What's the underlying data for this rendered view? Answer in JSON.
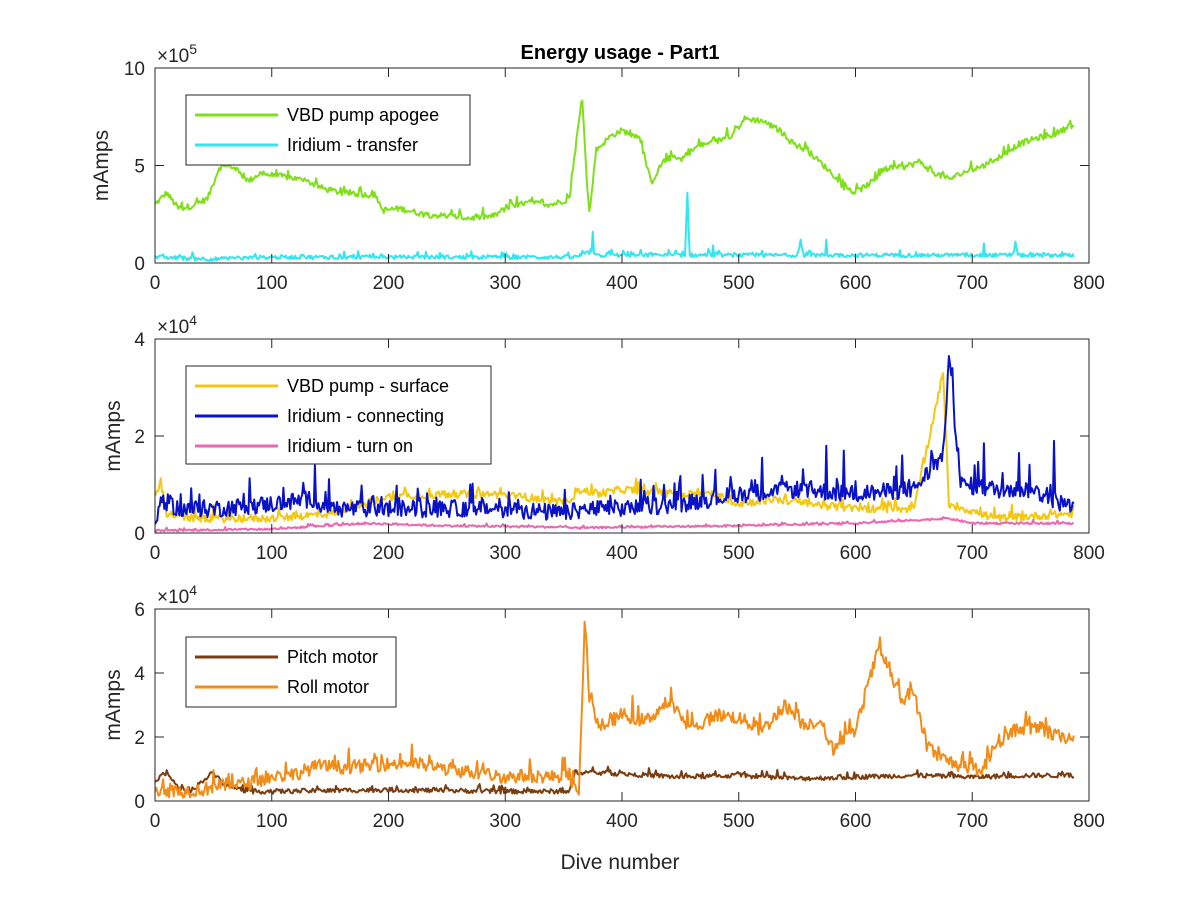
{
  "chart_data": [
    {
      "type": "line",
      "title": "Energy usage - Part1",
      "xlabel": "",
      "ylabel": "mAmps",
      "y_exponent_label": "×10",
      "y_exponent": "5",
      "xlim": [
        0,
        800
      ],
      "ylim": [
        0,
        10
      ],
      "xticks": [
        0,
        100,
        200,
        300,
        400,
        500,
        600,
        700,
        800
      ],
      "yticks": [
        0,
        5,
        10
      ],
      "legend_position": "top-left",
      "grid": false,
      "series": [
        {
          "name": "VBD pump apogee",
          "color": "#7fe01a",
          "noise": 0.15,
          "points": [
            [
              0,
              3.0
            ],
            [
              10,
              3.6
            ],
            [
              20,
              2.8
            ],
            [
              30,
              2.9
            ],
            [
              45,
              3.3
            ],
            [
              55,
              4.9
            ],
            [
              65,
              5.0
            ],
            [
              80,
              4.2
            ],
            [
              90,
              4.6
            ],
            [
              100,
              4.5
            ],
            [
              115,
              4.4
            ],
            [
              130,
              4.2
            ],
            [
              145,
              3.8
            ],
            [
              160,
              3.6
            ],
            [
              180,
              3.5
            ],
            [
              188,
              3.5
            ],
            [
              195,
              2.7
            ],
            [
              210,
              2.8
            ],
            [
              230,
              2.5
            ],
            [
              250,
              2.4
            ],
            [
              270,
              2.3
            ],
            [
              290,
              2.4
            ],
            [
              300,
              2.8
            ],
            [
              320,
              3.1
            ],
            [
              340,
              3.0
            ],
            [
              355,
              3.3
            ],
            [
              362,
              6.8
            ],
            [
              366,
              8.4
            ],
            [
              370,
              4.0
            ],
            [
              372,
              2.6
            ],
            [
              378,
              5.8
            ],
            [
              390,
              6.5
            ],
            [
              400,
              6.8
            ],
            [
              415,
              6.4
            ],
            [
              425,
              4.1
            ],
            [
              435,
              5.2
            ],
            [
              445,
              5.5
            ],
            [
              450,
              5.3
            ],
            [
              465,
              6.0
            ],
            [
              480,
              6.2
            ],
            [
              495,
              6.6
            ],
            [
              505,
              7.4
            ],
            [
              520,
              7.3
            ],
            [
              535,
              6.8
            ],
            [
              545,
              6.2
            ],
            [
              560,
              5.7
            ],
            [
              580,
              4.6
            ],
            [
              590,
              3.9
            ],
            [
              600,
              3.6
            ],
            [
              615,
              4.2
            ],
            [
              625,
              4.8
            ],
            [
              640,
              4.9
            ],
            [
              655,
              5.2
            ],
            [
              665,
              4.7
            ],
            [
              680,
              4.3
            ],
            [
              695,
              4.7
            ],
            [
              710,
              5.0
            ],
            [
              725,
              5.5
            ],
            [
              740,
              6.1
            ],
            [
              755,
              6.4
            ],
            [
              770,
              6.6
            ],
            [
              787,
              7.1
            ]
          ]
        },
        {
          "name": "Iridium - transfer",
          "color": "#31e6ef",
          "noise": 0.1,
          "points": [
            [
              0,
              0.3
            ],
            [
              50,
              0.2
            ],
            [
              100,
              0.3
            ],
            [
              150,
              0.3
            ],
            [
              200,
              0.3
            ],
            [
              250,
              0.3
            ],
            [
              300,
              0.3
            ],
            [
              350,
              0.3
            ],
            [
              360,
              0.3
            ],
            [
              375,
              0.6
            ],
            [
              380,
              0.4
            ],
            [
              400,
              0.4
            ],
            [
              454,
              0.4
            ],
            [
              456,
              3.6
            ],
            [
              458,
              0.4
            ],
            [
              500,
              0.4
            ],
            [
              551,
              0.4
            ],
            [
              553,
              1.2
            ],
            [
              555,
              0.4
            ],
            [
              600,
              0.4
            ],
            [
              650,
              0.4
            ],
            [
              700,
              0.4
            ],
            [
              735,
              0.4
            ],
            [
              737,
              1.1
            ],
            [
              739,
              0.4
            ],
            [
              787,
              0.4
            ]
          ],
          "spikes": [
            [
              375,
              1.6
            ],
            [
              456,
              3.6
            ],
            [
              478,
              0.9
            ],
            [
              553,
              1.2
            ],
            [
              575,
              1.2
            ],
            [
              710,
              1.0
            ],
            [
              737,
              1.1
            ]
          ]
        }
      ]
    },
    {
      "type": "line",
      "title": "",
      "xlabel": "",
      "ylabel": "mAmps",
      "y_exponent_label": "×10",
      "y_exponent": "4",
      "xlim": [
        0,
        800
      ],
      "ylim": [
        0,
        4
      ],
      "xticks": [
        0,
        100,
        200,
        300,
        400,
        500,
        600,
        700,
        800
      ],
      "yticks": [
        0,
        2,
        4
      ],
      "legend_position": "top-left",
      "grid": false,
      "series": [
        {
          "name": "VBD pump - surface",
          "color": "#f5c710",
          "noise": 0.2,
          "points": [
            [
              0,
              0.8
            ],
            [
              5,
              1.05
            ],
            [
              10,
              0.4
            ],
            [
              30,
              0.3
            ],
            [
              60,
              0.3
            ],
            [
              100,
              0.3
            ],
            [
              150,
              0.4
            ],
            [
              180,
              0.6
            ],
            [
              200,
              0.75
            ],
            [
              250,
              0.8
            ],
            [
              290,
              0.8
            ],
            [
              330,
              0.7
            ],
            [
              350,
              0.6
            ],
            [
              365,
              0.9
            ],
            [
              380,
              0.8
            ],
            [
              400,
              0.9
            ],
            [
              450,
              0.8
            ],
            [
              480,
              0.8
            ],
            [
              500,
              0.6
            ],
            [
              530,
              0.7
            ],
            [
              560,
              0.6
            ],
            [
              600,
              0.5
            ],
            [
              650,
              0.5
            ],
            [
              675,
              3.3
            ],
            [
              680,
              0.6
            ],
            [
              720,
              0.3
            ],
            [
              787,
              0.4
            ]
          ]
        },
        {
          "name": "Iridium - connecting",
          "color": "#0a12c8",
          "noise": 0.45,
          "points": [
            [
              0,
              0.1
            ],
            [
              5,
              0.7
            ],
            [
              20,
              0.5
            ],
            [
              50,
              0.5
            ],
            [
              100,
              0.6
            ],
            [
              135,
              0.7
            ],
            [
              150,
              0.5
            ],
            [
              200,
              0.5
            ],
            [
              250,
              0.5
            ],
            [
              300,
              0.5
            ],
            [
              350,
              0.4
            ],
            [
              370,
              0.5
            ],
            [
              400,
              0.5
            ],
            [
              450,
              0.6
            ],
            [
              500,
              0.8
            ],
            [
              550,
              0.9
            ],
            [
              600,
              0.8
            ],
            [
              650,
              0.9
            ],
            [
              675,
              1.6
            ],
            [
              680,
              3.6
            ],
            [
              690,
              1.0
            ],
            [
              720,
              0.9
            ],
            [
              750,
              0.9
            ],
            [
              787,
              0.5
            ]
          ],
          "spikes": [
            [
              137,
              1.4
            ],
            [
              270,
              1.0
            ],
            [
              520,
              1.55
            ],
            [
              575,
              1.8
            ],
            [
              590,
              1.7
            ],
            [
              640,
              1.6
            ],
            [
              680,
              3.65
            ],
            [
              683,
              3.4
            ],
            [
              710,
              1.85
            ],
            [
              740,
              1.65
            ],
            [
              770,
              1.9
            ]
          ]
        },
        {
          "name": "Iridium - turn on",
          "color": "#ec66b0",
          "noise": 0.05,
          "points": [
            [
              0,
              0.05
            ],
            [
              100,
              0.08
            ],
            [
              180,
              0.2
            ],
            [
              250,
              0.15
            ],
            [
              350,
              0.12
            ],
            [
              360,
              0.1
            ],
            [
              400,
              0.12
            ],
            [
              500,
              0.15
            ],
            [
              600,
              0.2
            ],
            [
              680,
              0.3
            ],
            [
              700,
              0.2
            ],
            [
              787,
              0.2
            ]
          ]
        }
      ]
    },
    {
      "type": "line",
      "title": "",
      "xlabel": "Dive number",
      "ylabel": "mAmps",
      "y_exponent_label": "×10",
      "y_exponent": "4",
      "xlim": [
        0,
        800
      ],
      "ylim": [
        0,
        6
      ],
      "xticks": [
        0,
        100,
        200,
        300,
        400,
        500,
        600,
        700,
        800
      ],
      "yticks": [
        0,
        2,
        4,
        6
      ],
      "legend_position": "top-left",
      "grid": false,
      "series": [
        {
          "name": "Pitch motor",
          "color": "#7b3d0f",
          "noise": 0.12,
          "points": [
            [
              0,
              0.6
            ],
            [
              10,
              0.9
            ],
            [
              20,
              0.4
            ],
            [
              30,
              0.3
            ],
            [
              50,
              0.9
            ],
            [
              60,
              0.5
            ],
            [
              80,
              0.3
            ],
            [
              100,
              0.3
            ],
            [
              200,
              0.35
            ],
            [
              300,
              0.3
            ],
            [
              355,
              0.3
            ],
            [
              360,
              0.9
            ],
            [
              400,
              0.85
            ],
            [
              450,
              0.75
            ],
            [
              500,
              0.8
            ],
            [
              550,
              0.7
            ],
            [
              600,
              0.75
            ],
            [
              650,
              0.8
            ],
            [
              700,
              0.75
            ],
            [
              750,
              0.8
            ],
            [
              787,
              0.8
            ]
          ]
        },
        {
          "name": "Roll motor",
          "color": "#f28c18",
          "noise": 0.35,
          "points": [
            [
              0,
              0.35
            ],
            [
              20,
              0.3
            ],
            [
              40,
              0.35
            ],
            [
              60,
              0.5
            ],
            [
              80,
              0.55
            ],
            [
              100,
              0.75
            ],
            [
              120,
              0.85
            ],
            [
              140,
              1.1
            ],
            [
              160,
              1.05
            ],
            [
              180,
              1.1
            ],
            [
              200,
              1.15
            ],
            [
              220,
              1.2
            ],
            [
              240,
              1.05
            ],
            [
              260,
              0.95
            ],
            [
              280,
              0.85
            ],
            [
              300,
              0.75
            ],
            [
              320,
              0.8
            ],
            [
              340,
              0.75
            ],
            [
              355,
              0.85
            ],
            [
              360,
              0.3
            ],
            [
              363,
              0.05
            ],
            [
              368,
              5.6
            ],
            [
              372,
              3.3
            ],
            [
              380,
              2.3
            ],
            [
              400,
              2.7
            ],
            [
              420,
              2.5
            ],
            [
              440,
              3.1
            ],
            [
              460,
              2.2
            ],
            [
              480,
              2.7
            ],
            [
              500,
              2.6
            ],
            [
              520,
              2.2
            ],
            [
              540,
              3.0
            ],
            [
              555,
              2.4
            ],
            [
              570,
              2.5
            ],
            [
              580,
              1.6
            ],
            [
              600,
              2.2
            ],
            [
              620,
              4.8
            ],
            [
              640,
              3.1
            ],
            [
              650,
              3.4
            ],
            [
              660,
              1.8
            ],
            [
              670,
              1.4
            ],
            [
              690,
              1.1
            ],
            [
              700,
              0.9
            ],
            [
              708,
              0.9
            ],
            [
              720,
              1.8
            ],
            [
              740,
              2.3
            ],
            [
              760,
              2.2
            ],
            [
              775,
              2.0
            ],
            [
              787,
              2.0
            ]
          ],
          "spikes": [
            [
              368,
              5.6
            ],
            [
              620,
              4.8
            ]
          ]
        }
      ]
    }
  ]
}
